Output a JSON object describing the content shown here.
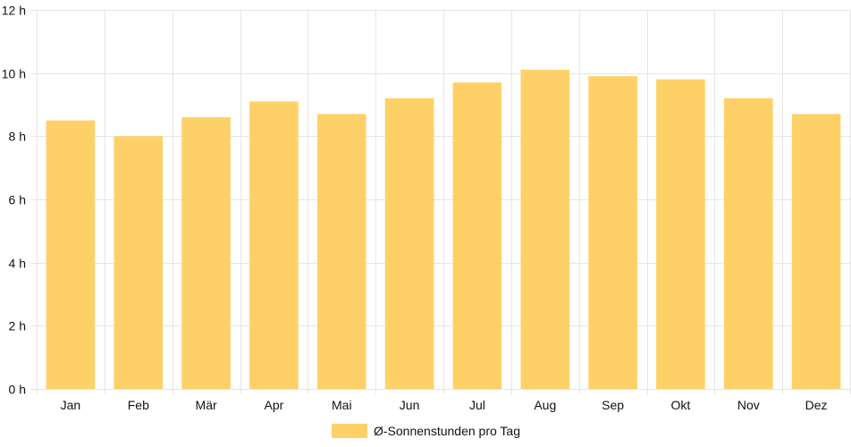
{
  "chart_data": {
    "type": "bar",
    "categories": [
      "Jan",
      "Feb",
      "Mär",
      "Apr",
      "Mai",
      "Jun",
      "Jul",
      "Aug",
      "Sep",
      "Okt",
      "Nov",
      "Dez"
    ],
    "series": [
      {
        "name": "Ø-Sonnenstunden pro Tag",
        "values": [
          8.5,
          8.0,
          8.6,
          9.1,
          8.7,
          9.2,
          9.7,
          10.1,
          9.9,
          9.8,
          9.2,
          8.7
        ]
      }
    ],
    "y_ticks": [
      "0 h",
      "2 h",
      "4 h",
      "6 h",
      "8 h",
      "10 h",
      "12 h"
    ],
    "ylim": [
      0,
      12
    ],
    "grid": true,
    "legend_position": "bottom",
    "bar_color": "#fed168",
    "grid_color": "#e5e5e5",
    "text_color": "#111111"
  }
}
